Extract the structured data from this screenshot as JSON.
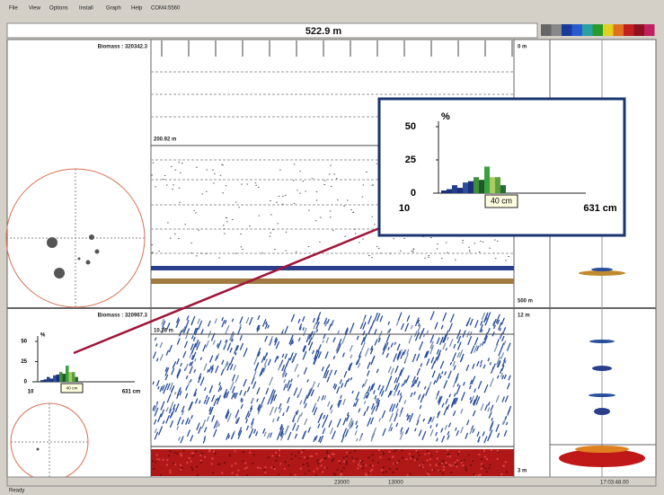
{
  "menu": [
    "File",
    "View",
    "Options",
    "Install",
    "Graph",
    "Help",
    "COM4:5560"
  ],
  "header": {
    "range": "522.9 m"
  },
  "top_panel": {
    "biomass": "Biomass : 320342.3",
    "depth_top": "0 m",
    "depth_bottom": "500 m",
    "marker": "200.92 m"
  },
  "bottom_panel": {
    "biomass": "Biomass : 320967.3",
    "depth_top": "12 m",
    "depth_bottom": "3 m",
    "marker": "10.26 m"
  },
  "zoom_histogram": {
    "type": "bar",
    "y_label": "%",
    "ylim": [
      0,
      50
    ],
    "yticks": [
      0,
      25,
      50
    ],
    "x_start": "10",
    "x_end": "631 cm",
    "selected": "40 cm",
    "values": [
      2,
      3,
      6,
      4,
      8,
      9,
      12,
      10,
      20,
      12,
      12,
      6
    ],
    "colors": [
      "#1c2f7a",
      "#1c2f7a",
      "#23408f",
      "#1c2f7a",
      "#2a4f9c",
      "#1c2f7a",
      "#3f8f3a",
      "#1c5a2a",
      "#3aa040",
      "#a8cc60",
      "#5aa040",
      "#2a6a30"
    ]
  },
  "small_histogram": {
    "type": "bar",
    "y_label": "%",
    "ylim": [
      0,
      50
    ],
    "yticks": [
      0,
      25,
      50
    ],
    "x_start": "10",
    "x_end": "631 cm",
    "selected": "40 cm",
    "values": [
      2,
      3,
      6,
      4,
      8,
      9,
      12,
      10,
      20,
      12,
      12,
      6
    ],
    "colors": [
      "#1c2f7a",
      "#1c2f7a",
      "#23408f",
      "#1c2f7a",
      "#2a4f9c",
      "#1c2f7a",
      "#3f8f3a",
      "#1c5a2a",
      "#3aa040",
      "#a8cc60",
      "#5aa040",
      "#2a6a30"
    ]
  },
  "status": [
    "23000",
    "13000",
    "17:03:48.00"
  ],
  "footer": "Ready"
}
